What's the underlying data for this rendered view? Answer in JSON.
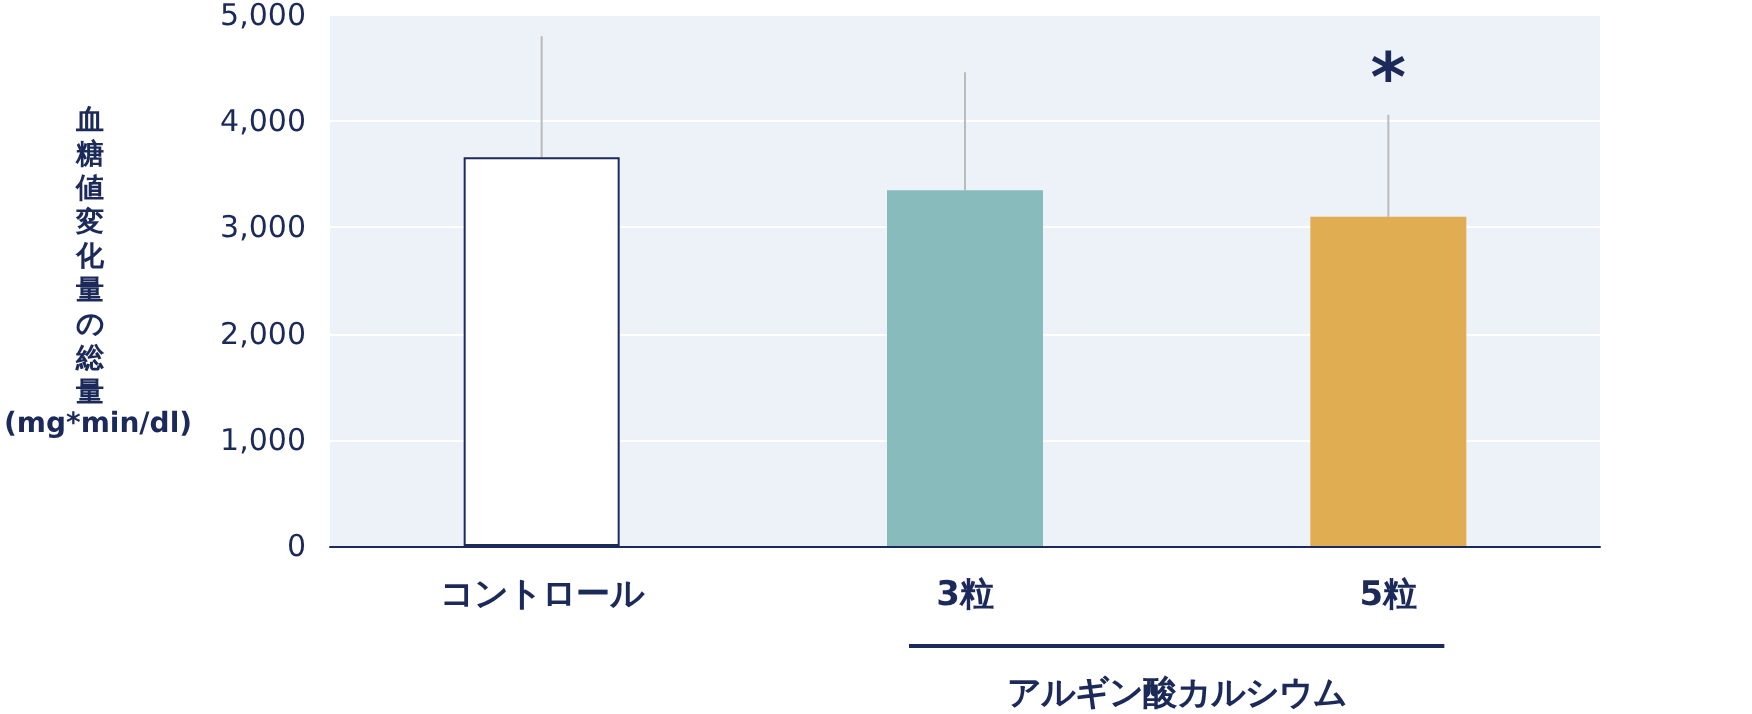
{
  "chart_data": {
    "type": "bar",
    "ylabel": "血糖値変化量の総量\n(mg*min/dl)",
    "categories": [
      "コントロール",
      "3粒",
      "5粒"
    ],
    "values": [
      3660,
      3350,
      3100
    ],
    "colors": [
      "#ffffff",
      "#88bcbc",
      "#e1ad52"
    ],
    "errors": [
      [
        3660,
        4800
      ],
      [
        3350,
        4460
      ],
      [
        3100,
        4060
      ]
    ],
    "ylim": [
      0,
      5000
    ],
    "yticks": [
      0,
      {
        "value": 1000,
        "label": "1,000"
      },
      {
        "value": 2000,
        "label": "2,000"
      },
      {
        "value": 3000,
        "label": "3,000"
      },
      {
        "value": 4000,
        "label": "4,000"
      },
      {
        "value": 5000,
        "label": "5,000"
      }
    ],
    "grid": "y",
    "annotations": [
      "*",
      "アルギン酸カルシウム"
    ]
  }
}
